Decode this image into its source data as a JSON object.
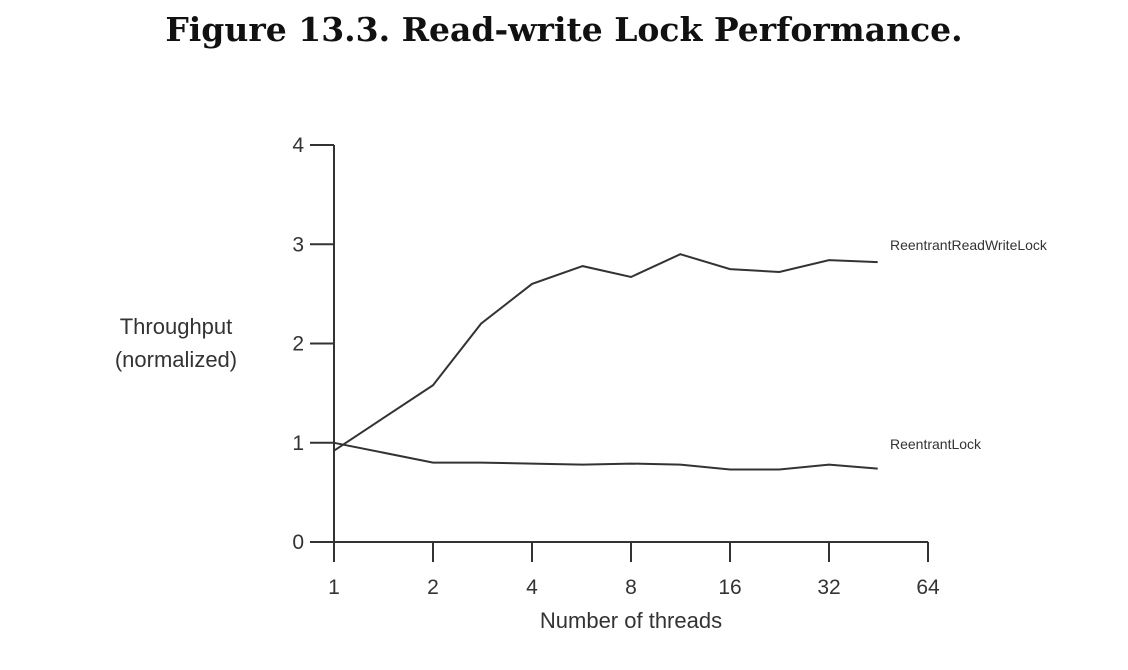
{
  "title": "Figure 13.3. Read-write Lock Performance.",
  "chart_data": {
    "type": "line",
    "x_tick_labels": [
      "1",
      "2",
      "4",
      "8",
      "16",
      "32",
      "64"
    ],
    "x_log2": true,
    "xlabel": "Number of threads",
    "ylabel_lines": [
      "Throughput",
      "(normalized)"
    ],
    "y_ticks": [
      0,
      1,
      2,
      3,
      4
    ],
    "ylim": [
      0,
      4
    ],
    "series": [
      {
        "name": "ReentrantReadWriteLock",
        "x": [
          1,
          2,
          2.8,
          4,
          5.7,
          8,
          11.3,
          16,
          22.6,
          32,
          45
        ],
        "values": [
          0.92,
          1.58,
          2.2,
          2.6,
          2.78,
          2.67,
          2.9,
          2.75,
          2.72,
          2.84,
          2.82
        ]
      },
      {
        "name": "ReentrantLock",
        "x": [
          1,
          2,
          2.8,
          4,
          5.7,
          8,
          11.3,
          16,
          22.6,
          32,
          45
        ],
        "values": [
          1.0,
          0.8,
          0.8,
          0.79,
          0.78,
          0.79,
          0.78,
          0.73,
          0.73,
          0.78,
          0.74
        ]
      }
    ]
  }
}
